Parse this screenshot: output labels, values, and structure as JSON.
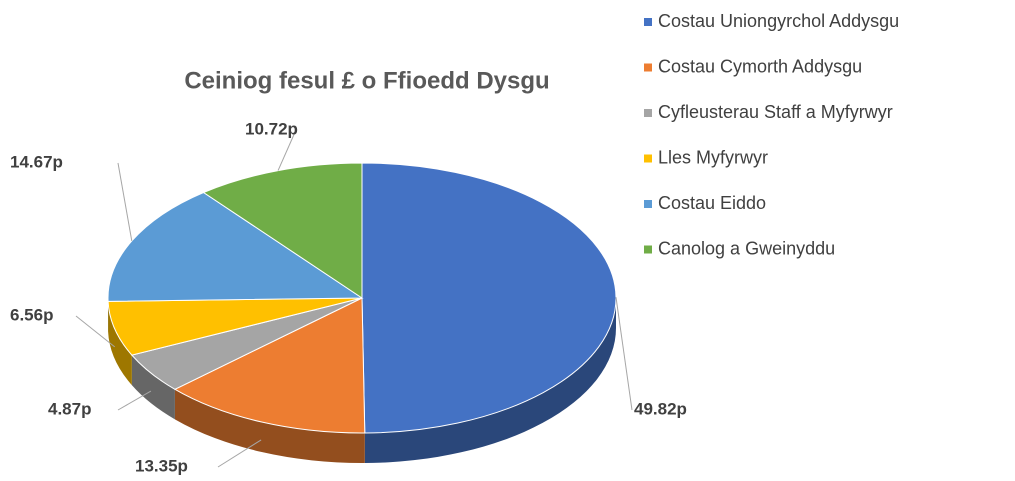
{
  "chart_data": {
    "type": "pie3d",
    "title": "Ceiniog fesul £ o Ffioedd Dysgu",
    "categories": [
      "Costau Uniongyrchol Addysgu",
      "Costau Cymorth Addysgu",
      "Cyfleusterau Staff a Myfyrwyr",
      "Lles Myfyrwyr",
      "Costau Eiddo",
      "Canolog a Gweinyddu"
    ],
    "values": [
      49.82,
      13.35,
      4.87,
      6.56,
      14.67,
      10.72
    ],
    "value_labels": [
      "49.82p",
      "13.35p",
      "4.87p",
      "6.56p",
      "14.67p",
      "10.72p"
    ],
    "colors": [
      "#4472c4",
      "#ed7d31",
      "#a5a5a5",
      "#ffc000",
      "#5b9bd5",
      "#70ad47"
    ],
    "legend": "right"
  }
}
